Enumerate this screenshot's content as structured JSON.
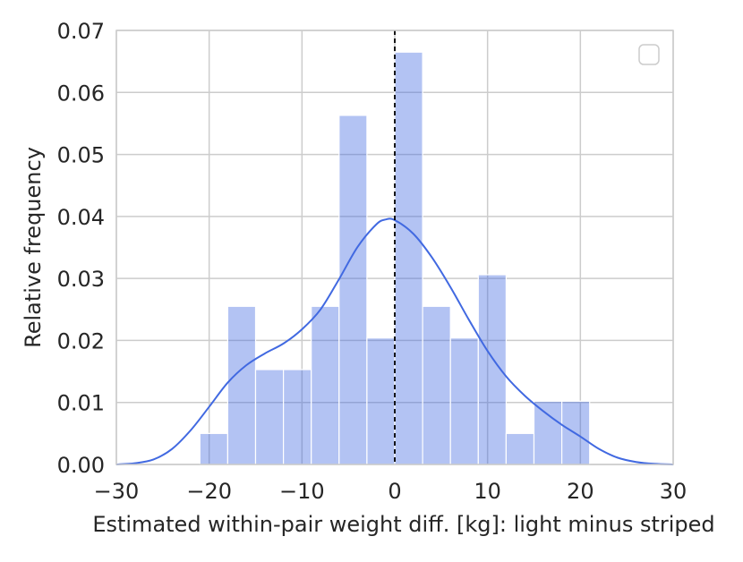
{
  "chart_data": {
    "type": "bar",
    "bins": [
      {
        "x0": -21.0,
        "x1": -18.0,
        "value": 0.005
      },
      {
        "x0": -18.0,
        "x1": -15.0,
        "value": 0.0255
      },
      {
        "x0": -15.0,
        "x1": -12.0,
        "value": 0.0153
      },
      {
        "x0": -12.0,
        "x1": -9.0,
        "value": 0.0153
      },
      {
        "x0": -9.0,
        "x1": -6.0,
        "value": 0.0255
      },
      {
        "x0": -6.0,
        "x1": -3.0,
        "value": 0.0563
      },
      {
        "x0": -3.0,
        "x1": 0.0,
        "value": 0.0204
      },
      {
        "x0": 0.0,
        "x1": 3.0,
        "value": 0.0665
      },
      {
        "x0": 3.0,
        "x1": 6.0,
        "value": 0.0255
      },
      {
        "x0": 6.0,
        "x1": 9.0,
        "value": 0.0204
      },
      {
        "x0": 9.0,
        "x1": 12.0,
        "value": 0.0306
      },
      {
        "x0": 12.0,
        "x1": 15.0,
        "value": 0.005
      },
      {
        "x0": 15.0,
        "x1": 18.0,
        "value": 0.0102
      },
      {
        "x0": 18.0,
        "x1": 21.0,
        "value": 0.0102
      }
    ],
    "kde": {
      "x": [
        -30,
        -28,
        -26,
        -24,
        -22,
        -20,
        -18,
        -16,
        -14,
        -12,
        -10,
        -8,
        -6,
        -4,
        -2,
        -1,
        0,
        2,
        4,
        6,
        8,
        10,
        12,
        14,
        16,
        18,
        20,
        22,
        24,
        26,
        28,
        30
      ],
      "y": [
        0.0,
        0.0002,
        0.0008,
        0.0025,
        0.0055,
        0.0093,
        0.0132,
        0.016,
        0.0179,
        0.0195,
        0.0218,
        0.025,
        0.0299,
        0.0351,
        0.0387,
        0.0395,
        0.0394,
        0.0372,
        0.0334,
        0.0286,
        0.0233,
        0.0183,
        0.0142,
        0.0111,
        0.0086,
        0.0064,
        0.0045,
        0.0025,
        0.0011,
        0.0004,
        0.0001,
        0.0
      ]
    },
    "reference_line_x": 0,
    "xlabel": "Estimated within-pair weight diff. [kg]: light minus striped",
    "ylabel": "Relative frequency",
    "xlim": [
      -30,
      30
    ],
    "ylim": [
      0,
      0.07
    ],
    "xticks": [
      "−30",
      "−20",
      "−10",
      "0",
      "10",
      "20",
      "30"
    ],
    "yticks": [
      "0.00",
      "0.01",
      "0.02",
      "0.03",
      "0.04",
      "0.05",
      "0.06",
      "0.07"
    ],
    "grid": true,
    "legend": "top-right (empty)",
    "colors": {
      "bar": "#4169e1",
      "kde_line": "#4169e1",
      "grid": "#cccccc",
      "reference_line": "#000000"
    }
  }
}
